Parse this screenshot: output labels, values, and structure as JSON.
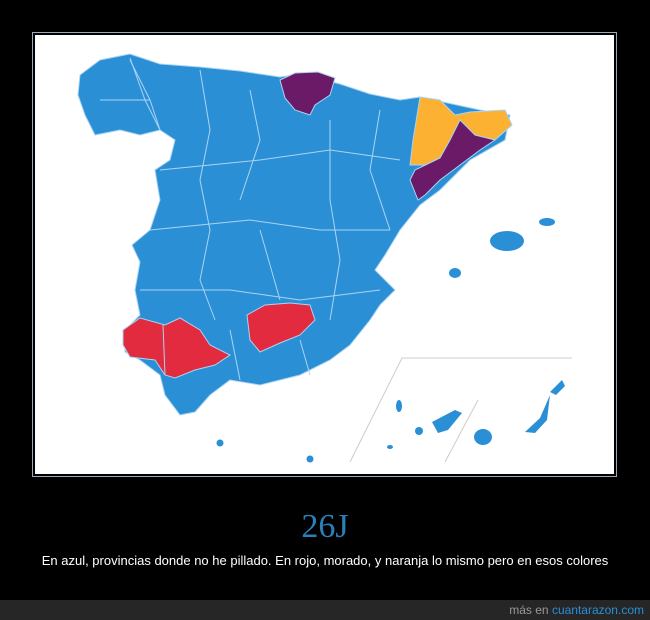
{
  "poster": {
    "title": "26J",
    "caption": "En azul, provincias donde no he pillado. En rojo, morado, y naranja lo mismo pero en esos colores"
  },
  "footer": {
    "prefix": "más en",
    "site_link": "cuantarazon.com"
  },
  "map": {
    "colors": {
      "blue": "#2b8fd6",
      "red": "#e32b40",
      "purple": "#6a1a66",
      "orange": "#fcb133",
      "border": "#a9d4f2"
    },
    "highlighted_regions": [
      {
        "color": "red",
        "provinces": [
          "Huelva",
          "Sevilla",
          "Jaén"
        ]
      },
      {
        "color": "purple",
        "provinces": [
          "Gipuzkoa",
          "Bizkaia",
          "Álava",
          "Barcelona",
          "Tarragona"
        ]
      },
      {
        "color": "orange",
        "provinces": [
          "Lleida",
          "Girona"
        ]
      }
    ]
  }
}
